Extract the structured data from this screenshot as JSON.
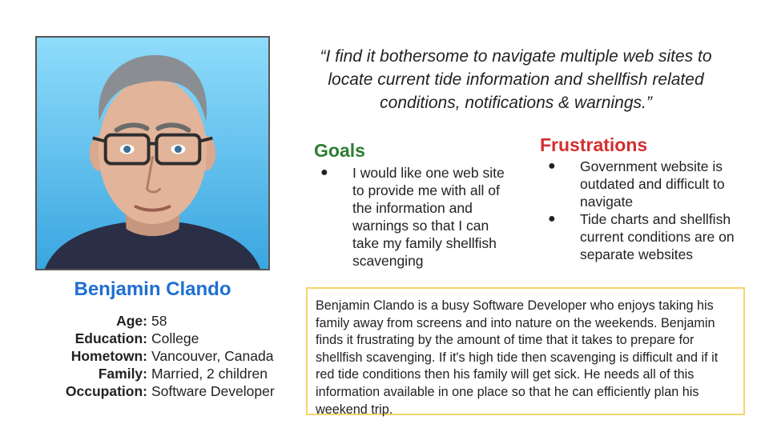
{
  "persona": {
    "name": "Benjamin Clando",
    "facts": [
      {
        "label": "Age:",
        "value": "58"
      },
      {
        "label": "Education:",
        "value": "College"
      },
      {
        "label": "Hometown:",
        "value": "Vancouver, Canada"
      },
      {
        "label": "Family:",
        "value": "Married, 2 children"
      },
      {
        "label": "Occupation:",
        "value": "Software Developer"
      }
    ]
  },
  "quote": "“I find it bothersome to navigate multiple web sites to locate current tide information and shellfish related conditions, notifications & warnings.”",
  "goals": {
    "title": "Goals",
    "items": [
      "I would like one web site to provide me with all of the information and warnings so that I can take my family shellfish scavenging"
    ]
  },
  "frustrations": {
    "title": "Frustrations",
    "items": [
      "Government website is outdated and difficult to navigate",
      "Tide charts and shellfish current conditions are on separate websites"
    ]
  },
  "bio": "Benjamin Clando is a busy Software Developer who enjoys taking his family away from screens and into nature on the weekends. Benjamin finds it frustrating by the amount of time that it takes to prepare for shellfish scavenging. If it's high tide then scavenging is difficult and if it red tide conditions then his family will get sick. He needs all of this information available in one place so that he can efficiently plan his weekend trip.",
  "bullet_glyph": "●",
  "colors": {
    "name": "#1f6fd1",
    "goals": "#2e7d32",
    "frustrations": "#d32f2f",
    "bio_border": "#f6d46b",
    "portrait_bg": "#5bc4f0"
  },
  "icons": {
    "portrait": "avatar-illustration"
  }
}
